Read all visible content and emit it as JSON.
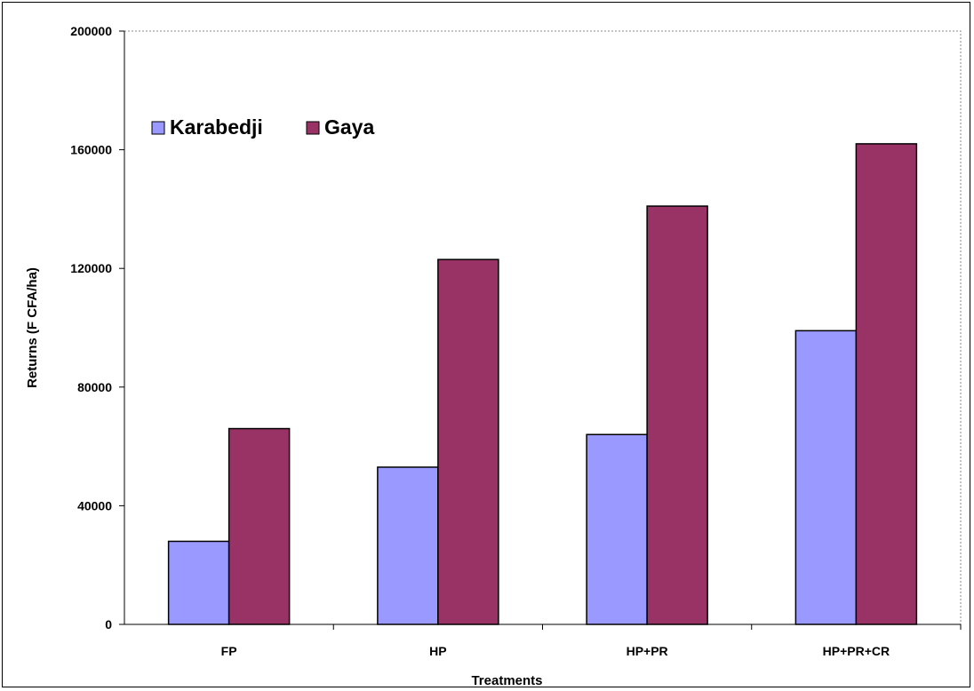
{
  "chart_data": {
    "type": "bar",
    "categories": [
      "FP",
      "HP",
      "HP+PR",
      "HP+PR+CR"
    ],
    "series": [
      {
        "name": "Karabedji",
        "values": [
          28000,
          53000,
          64000,
          99000
        ],
        "color": "#9999FF"
      },
      {
        "name": "Gaya",
        "values": [
          66000,
          123000,
          141000,
          162000
        ],
        "color": "#993366"
      }
    ],
    "title": "",
    "xlabel": "Treatments",
    "ylabel": "Returns (F CFA/ha)",
    "ylim": [
      0,
      200000
    ],
    "yticks": [
      "0",
      "40000",
      "80000",
      "120000",
      "160000",
      "200000"
    ],
    "grid": false,
    "legend_position": "top-left",
    "plot_border": "dotted",
    "bar_outline_color": "#000000"
  }
}
